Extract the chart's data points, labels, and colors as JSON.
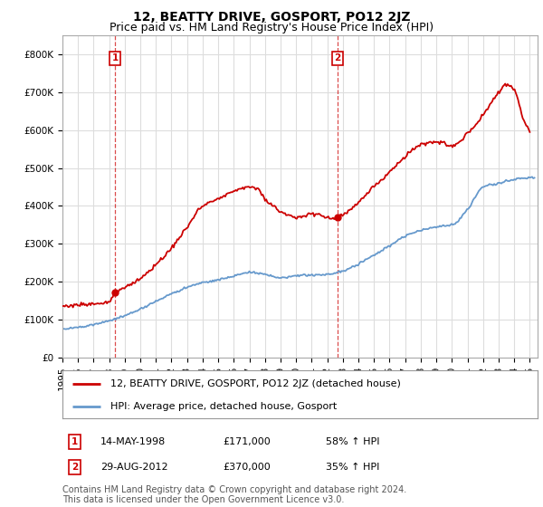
{
  "title": "12, BEATTY DRIVE, GOSPORT, PO12 2JZ",
  "subtitle": "Price paid vs. HM Land Registry's House Price Index (HPI)",
  "ylabel_ticks": [
    "£0",
    "£100K",
    "£200K",
    "£300K",
    "£400K",
    "£500K",
    "£600K",
    "£700K",
    "£800K"
  ],
  "ytick_values": [
    0,
    100000,
    200000,
    300000,
    400000,
    500000,
    600000,
    700000,
    800000
  ],
  "ylim": [
    0,
    850000
  ],
  "xlim_start": 1995.0,
  "xlim_end": 2025.5,
  "red_color": "#cc0000",
  "blue_color": "#6699cc",
  "grid_color": "#dddddd",
  "background_color": "#ffffff",
  "sale1_x": 1998.37,
  "sale1_y": 171000,
  "sale1_label": "1",
  "sale2_x": 2012.66,
  "sale2_y": 370000,
  "sale2_label": "2",
  "legend_line1": "12, BEATTY DRIVE, GOSPORT, PO12 2JZ (detached house)",
  "legend_line2": "HPI: Average price, detached house, Gosport",
  "table_row1_num": "1",
  "table_row1_date": "14-MAY-1998",
  "table_row1_price": "£171,000",
  "table_row1_hpi": "58% ↑ HPI",
  "table_row2_num": "2",
  "table_row2_date": "29-AUG-2012",
  "table_row2_price": "£370,000",
  "table_row2_hpi": "35% ↑ HPI",
  "footer": "Contains HM Land Registry data © Crown copyright and database right 2024.\nThis data is licensed under the Open Government Licence v3.0.",
  "title_fontsize": 10,
  "subtitle_fontsize": 9,
  "tick_fontsize": 7.5,
  "legend_fontsize": 8,
  "footer_fontsize": 7,
  "hpi_key_years": [
    1995,
    1996,
    1997,
    1998,
    1999,
    2000,
    2001,
    2002,
    2003,
    2004,
    2005,
    2006,
    2007,
    2008,
    2009,
    2010,
    2011,
    2012,
    2013,
    2014,
    2015,
    2016,
    2017,
    2018,
    2019,
    2020,
    2021,
    2022,
    2023,
    2024,
    2025
  ],
  "hpi_key_vals": [
    75000,
    80000,
    88000,
    97000,
    110000,
    128000,
    148000,
    168000,
    185000,
    198000,
    205000,
    215000,
    225000,
    220000,
    210000,
    215000,
    218000,
    220000,
    228000,
    248000,
    270000,
    295000,
    320000,
    335000,
    345000,
    350000,
    390000,
    450000,
    460000,
    470000,
    475000
  ],
  "price_key_years": [
    1995,
    1996,
    1997,
    1998.0,
    1998.4,
    1999,
    2000,
    2001,
    2002,
    2003,
    2004,
    2005,
    2006,
    2007,
    2007.5,
    2008,
    2008.5,
    2009,
    2009.5,
    2010,
    2010.5,
    2011,
    2011.5,
    2012,
    2012.5,
    2012.66,
    2013,
    2013.5,
    2014,
    2015,
    2016,
    2017,
    2018,
    2019,
    2020,
    2021,
    2022,
    2022.5,
    2023,
    2023.5,
    2024,
    2024.5,
    2025
  ],
  "price_key_vals": [
    135000,
    138000,
    142000,
    148000,
    171000,
    185000,
    210000,
    245000,
    290000,
    345000,
    400000,
    420000,
    440000,
    450000,
    445000,
    420000,
    400000,
    385000,
    375000,
    370000,
    375000,
    380000,
    375000,
    368000,
    365000,
    370000,
    378000,
    390000,
    410000,
    450000,
    490000,
    530000,
    560000,
    570000,
    560000,
    590000,
    640000,
    670000,
    700000,
    720000,
    710000,
    640000,
    600000
  ]
}
